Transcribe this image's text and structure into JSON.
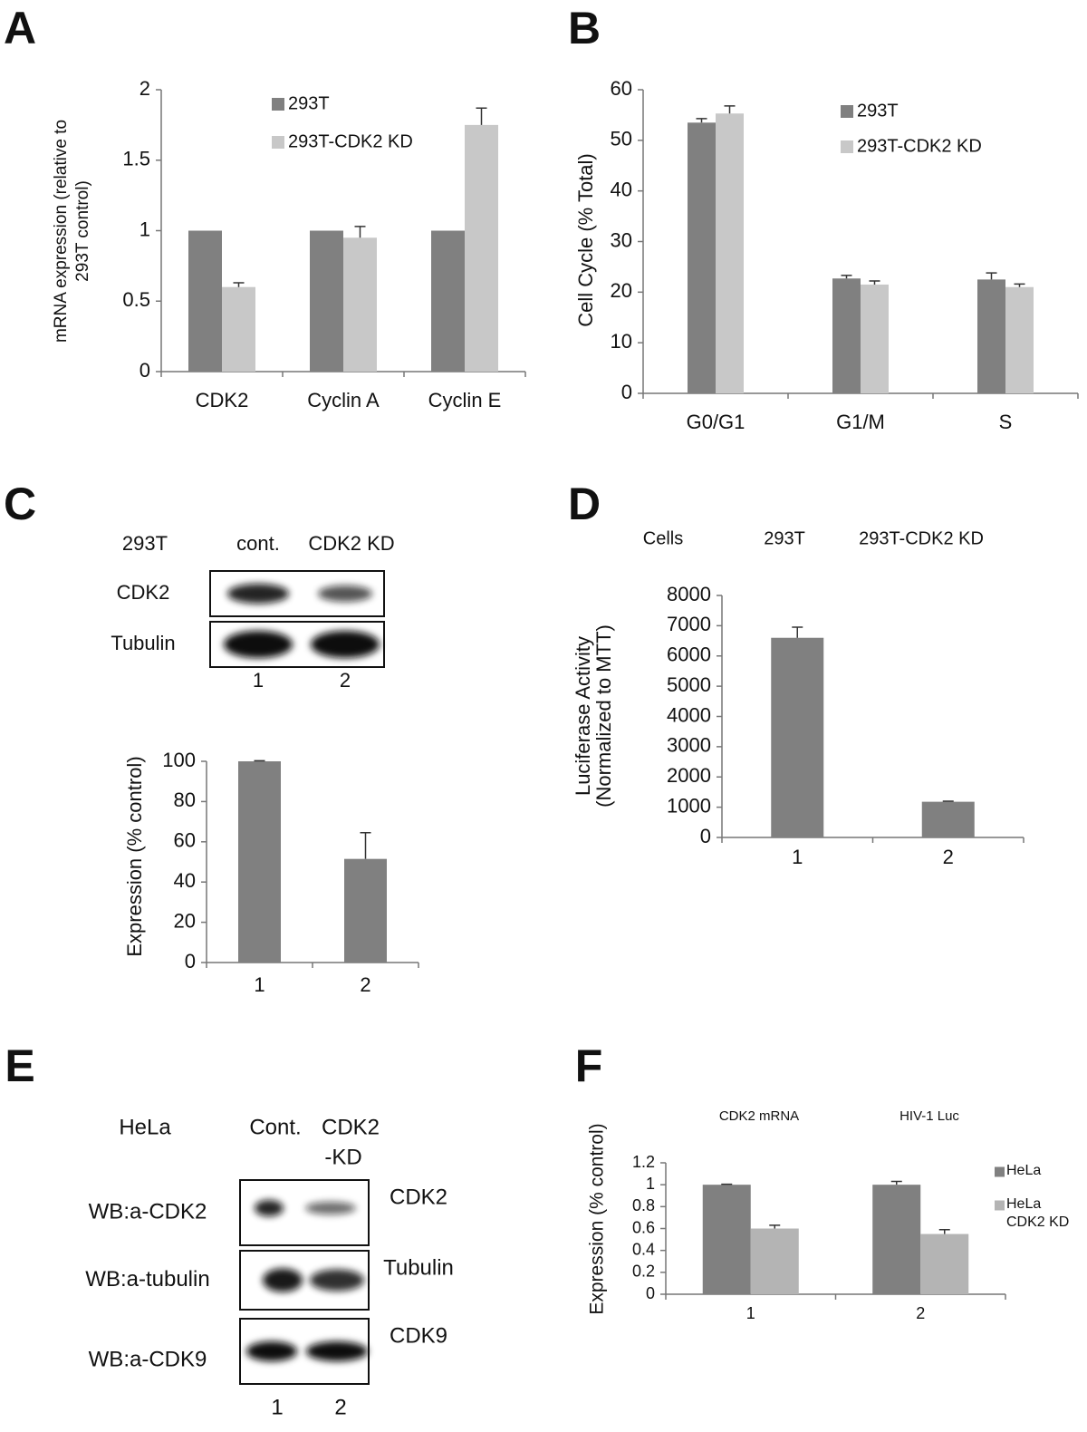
{
  "panel_labels": [
    "A",
    "B",
    "C",
    "D",
    "E",
    "F"
  ],
  "chart_data": [
    {
      "type": "bar",
      "ylabel": [
        "mRNA expression (relative to",
        "293T control)"
      ],
      "categories": [
        "CDK2",
        "Cyclin A",
        "Cyclin E"
      ],
      "series": [
        {
          "name": "293T",
          "color": "#808080",
          "values": [
            1,
            1,
            1
          ]
        },
        {
          "name": "293T-CDK2 KD",
          "color": "#c8c8c8",
          "values": [
            0.6,
            0.95,
            1.75
          ],
          "errors": [
            0.03,
            0.08,
            0.12
          ]
        }
      ],
      "ylim": [
        0,
        2
      ],
      "yticks": [
        0,
        0.5,
        1,
        1.5,
        2
      ]
    },
    {
      "type": "bar",
      "ylabel": [
        "Cell Cycle (% Total)"
      ],
      "categories": [
        "G0/G1",
        "G1/M",
        "S"
      ],
      "series": [
        {
          "name": "293T",
          "color": "#808080",
          "values": [
            53.5,
            22.7,
            22.5
          ],
          "errors": [
            0.8,
            0.6,
            1.3
          ]
        },
        {
          "name": "293T-CDK2 KD",
          "color": "#c8c8c8",
          "values": [
            55.3,
            21.5,
            21
          ],
          "errors": [
            1.5,
            0.7,
            0.6
          ]
        }
      ],
      "ylim": [
        0,
        60
      ],
      "yticks": [
        0,
        10,
        20,
        30,
        40,
        50,
        60
      ]
    },
    {
      "type": "bar",
      "ylabel": [
        "Expression (% control)"
      ],
      "categories": [
        "1",
        "2"
      ],
      "series": [
        {
          "color": "#808080",
          "values": [
            100,
            51.5
          ],
          "errors": [
            0.3,
            13
          ]
        }
      ],
      "ylim": [
        0,
        100
      ],
      "yticks": [
        0,
        20,
        40,
        60,
        80,
        100
      ]
    },
    {
      "type": "bar",
      "ylabel": [
        "Luciferase Activity",
        "(Normalized to MTT)"
      ],
      "annotations": [
        "Cells",
        "293T",
        "293T-CDK2 KD"
      ],
      "categories": [
        "1",
        "2"
      ],
      "series": [
        {
          "color": "#808080",
          "values": [
            6600,
            1180
          ],
          "errors": [
            350,
            20
          ]
        }
      ],
      "ylim": [
        0,
        8000
      ],
      "yticks": [
        0,
        1000,
        2000,
        3000,
        4000,
        5000,
        6000,
        7000,
        8000
      ]
    },
    {
      "type": "bar",
      "ylabel": [
        "Expression (% control)"
      ],
      "annotations": [
        "CDK2 mRNA",
        "HIV-1 Luc"
      ],
      "categories": [
        "1",
        "2"
      ],
      "series": [
        {
          "name": "HeLa",
          "color": "#808080",
          "values": [
            1,
            1
          ],
          "errors": [
            0.005,
            0.03
          ]
        },
        {
          "name": "HeLa CDK2 KD",
          "color": "#b4b4b4",
          "values": [
            0.6,
            0.55
          ],
          "errors": [
            0.03,
            0.04
          ]
        }
      ],
      "ylim": [
        0,
        1.2
      ],
      "yticks": [
        0,
        0.2,
        0.4,
        0.6,
        0.8,
        1,
        1.2
      ]
    }
  ],
  "blots": [
    {
      "cell_line": "293T",
      "lanes": [
        [
          "cont."
        ],
        [
          "CDK2 KD"
        ]
      ],
      "rows": [
        {
          "left": "CDK2"
        },
        {
          "left": "Tubulin"
        }
      ],
      "lane_numbers": [
        "1",
        "2"
      ]
    },
    {
      "cell_line": "HeLa",
      "lanes": [
        [
          "Cont."
        ],
        [
          "CDK2",
          "-KD"
        ]
      ],
      "rows": [
        {
          "left": "WB:a-CDK2",
          "right": "CDK2"
        },
        {
          "left": "WB:a-tubulin",
          "right": "Tubulin"
        },
        {
          "left": "WB:a-CDK9",
          "right": "CDK9"
        }
      ],
      "lane_numbers": [
        "1",
        "2"
      ]
    }
  ]
}
